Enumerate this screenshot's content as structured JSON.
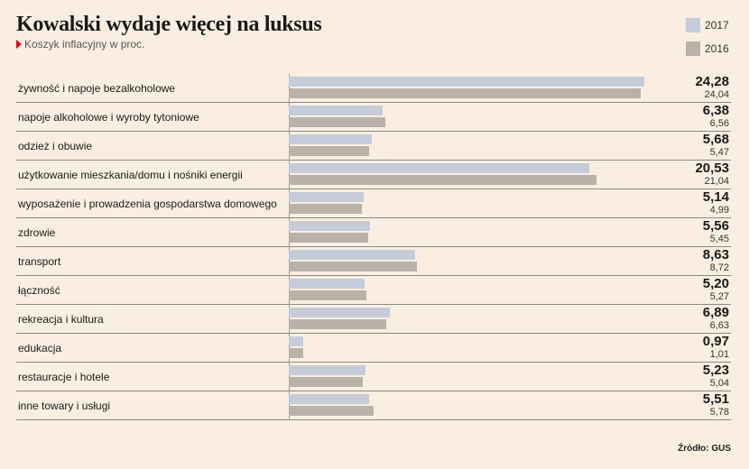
{
  "title": "Kowalski wydaje więcej na luksus",
  "subtitle": "Koszyk inflacyjny w proc.",
  "source": "Źródło: GUS",
  "colors": {
    "background": "#f9eee1",
    "series_2017": "#c5cbd9",
    "series_2016": "#b8b2a8",
    "marker": "#e30613"
  },
  "chart_data": {
    "type": "bar",
    "orientation": "horizontal",
    "categories": [
      "żywność i napoje bezalkoholowe",
      "napoje alkoholowe i wyroby tytoniowe",
      "odzież i obuwie",
      "użytkowanie mieszkania/domu i nośniki energii",
      "wyposażenie i prowadzenia gospodarstwa domowego",
      "zdrowie",
      "transport",
      "łączność",
      "rekreacja i kultura",
      "edukacja",
      "restauracje i hotele",
      "inne towary i usługi"
    ],
    "series": [
      {
        "name": "2017",
        "values": [
          24.28,
          6.38,
          5.68,
          20.53,
          5.14,
          5.56,
          8.63,
          5.2,
          6.89,
          0.97,
          5.23,
          5.51
        ],
        "labels": [
          "24,28",
          "6,38",
          "5,68",
          "20,53",
          "5,14",
          "5,56",
          "8,63",
          "5,20",
          "6,89",
          "0,97",
          "5,23",
          "5,51"
        ]
      },
      {
        "name": "2016",
        "values": [
          24.04,
          6.56,
          5.47,
          21.04,
          4.99,
          5.45,
          8.72,
          5.27,
          6.63,
          1.01,
          5.04,
          5.78
        ],
        "labels": [
          "24,04",
          "6,56",
          "5,47",
          "21,04",
          "4,99",
          "5,45",
          "8,72",
          "5,27",
          "6,63",
          "1,01",
          "5,04",
          "5,78"
        ]
      }
    ],
    "xlim": [
      0,
      24.28
    ],
    "grid": false,
    "legend": "top-right"
  }
}
